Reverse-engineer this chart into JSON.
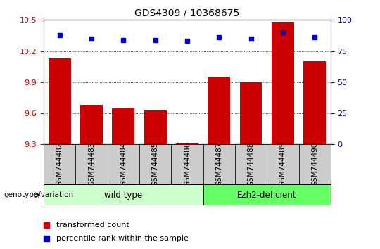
{
  "title": "GDS4309 / 10368675",
  "samples": [
    "GSM744482",
    "GSM744483",
    "GSM744484",
    "GSM744485",
    "GSM744486",
    "GSM744487",
    "GSM744488",
    "GSM744489",
    "GSM744490"
  ],
  "transformed_count": [
    10.13,
    9.68,
    9.65,
    9.63,
    9.31,
    9.95,
    9.9,
    10.48,
    10.1
  ],
  "percentile_rank": [
    88,
    85,
    84,
    84,
    83,
    86,
    85,
    90,
    86
  ],
  "ylim_left": [
    9.3,
    10.5
  ],
  "ylim_right": [
    0,
    100
  ],
  "yticks_left": [
    9.3,
    9.6,
    9.9,
    10.2,
    10.5
  ],
  "yticks_right": [
    0,
    25,
    50,
    75,
    100
  ],
  "bar_color": "#cc0000",
  "dot_color": "#0000cc",
  "wild_type_count": 5,
  "ezh2_count": 4,
  "wild_type_label": "wild type",
  "ezh2_label": "Ezh2-deficient",
  "genotype_label": "genotype/variation",
  "legend_bar_label": "transformed count",
  "legend_dot_label": "percentile rank within the sample",
  "wild_type_color": "#ccffcc",
  "ezh2_color": "#66ff66",
  "tick_label_color_left": "#cc0000",
  "tick_label_color_right": "#0000cc",
  "tick_bar_bg": "#cccccc"
}
